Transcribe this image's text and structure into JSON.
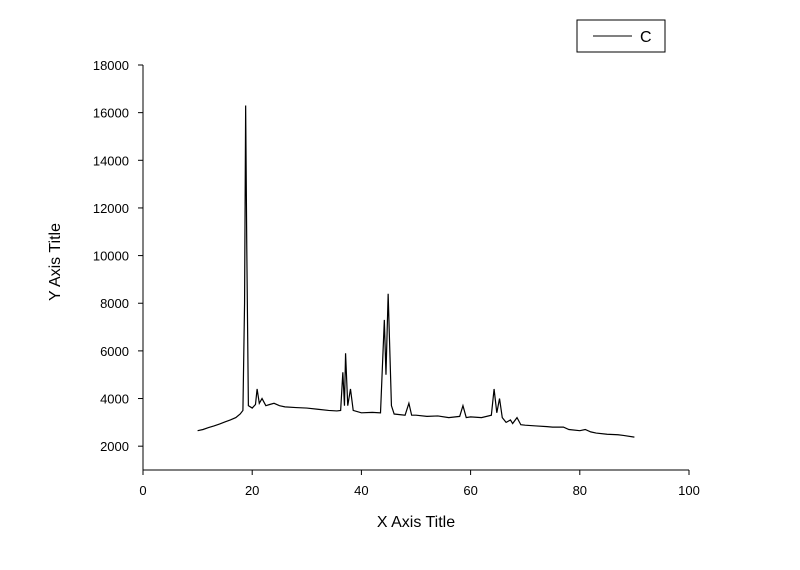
{
  "chart_data": {
    "type": "line",
    "xlabel": "X Axis Title",
    "ylabel": "Y Axis Title",
    "x": [
      10,
      11,
      12,
      13,
      14,
      15,
      16,
      17,
      17.8,
      18.3,
      18.6,
      18.8,
      19.0,
      19.3,
      20.0,
      20.6,
      20.9,
      21.3,
      21.8,
      22.5,
      23.2,
      24.0,
      25.0,
      26.0,
      28.0,
      30.0,
      32.0,
      34.0,
      35.5,
      36.2,
      36.6,
      36.9,
      37.1,
      37.5,
      38.0,
      38.5,
      40.0,
      42.0,
      43.5,
      44.2,
      44.5,
      44.9,
      45.5,
      46.0,
      48.0,
      48.7,
      49.2,
      50.0,
      52.0,
      54.0,
      56.0,
      58.0,
      58.6,
      59.2,
      60.0,
      62.0,
      63.8,
      64.3,
      64.8,
      65.3,
      65.8,
      66.5,
      67.3,
      67.7,
      68.5,
      69.2,
      70.0,
      72.0,
      74.0,
      75.0,
      77.0,
      78.0,
      80.0,
      81.0,
      82.0,
      83.0,
      85.0,
      87.0,
      88.0,
      90.0
    ],
    "series": [
      {
        "name": "C",
        "color": "#000000",
        "values": [
          2650,
          2700,
          2780,
          2850,
          2930,
          3020,
          3100,
          3200,
          3350,
          3500,
          8000,
          16300,
          10500,
          3700,
          3600,
          3750,
          4400,
          3800,
          4000,
          3700,
          3750,
          3800,
          3700,
          3650,
          3620,
          3600,
          3550,
          3500,
          3480,
          3500,
          5100,
          3700,
          5900,
          3700,
          4400,
          3500,
          3400,
          3420,
          3400,
          7300,
          5000,
          8400,
          3700,
          3350,
          3300,
          3800,
          3300,
          3300,
          3250,
          3270,
          3200,
          3250,
          3700,
          3200,
          3230,
          3200,
          3300,
          4400,
          3400,
          4000,
          3200,
          3000,
          3100,
          2950,
          3200,
          2900,
          2880,
          2850,
          2820,
          2800,
          2800,
          2700,
          2650,
          2700,
          2600,
          2550,
          2500,
          2480,
          2450,
          2380
        ]
      }
    ],
    "xlim": [
      0,
      100
    ],
    "xticks": [
      0,
      20,
      40,
      60,
      80,
      100
    ],
    "ylim": [
      1000,
      18000
    ],
    "yticks": [
      2000,
      4000,
      6000,
      8000,
      10000,
      12000,
      14000,
      16000,
      18000
    ],
    "legend": "top-right"
  }
}
